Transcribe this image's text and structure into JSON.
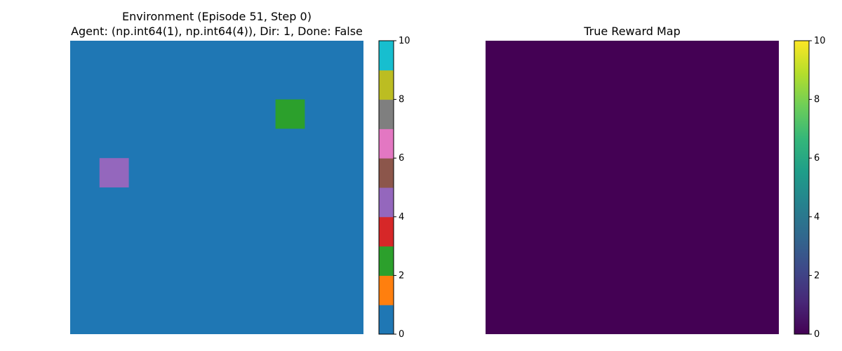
{
  "chart_data": [
    {
      "type": "heatmap",
      "title_line1": "Environment (Episode 51, Step 0)",
      "title_line2": "Agent: (np.int64(1), np.int64(4)), Dir: 1, Done: False",
      "grid_size": [
        10,
        10
      ],
      "background_value": 0,
      "cells": [
        {
          "row": 2,
          "col": 7,
          "value": 2
        },
        {
          "row": 4,
          "col": 1,
          "value": 4
        }
      ],
      "colormap": "tab10",
      "colorbar": {
        "range": [
          0,
          10
        ],
        "ticks": [
          "0",
          "2",
          "4",
          "6",
          "8",
          "10"
        ],
        "bands": [
          "#1f77b4",
          "#ff7f0e",
          "#2ca02c",
          "#d62728",
          "#9467bd",
          "#8c564b",
          "#e377c2",
          "#7f7f7f",
          "#bcbd22",
          "#17becf"
        ]
      },
      "axes": "off"
    },
    {
      "type": "heatmap",
      "title": "True Reward Map",
      "grid_size": [
        10,
        10
      ],
      "background_value": 0,
      "cells": [],
      "colormap": "viridis",
      "colorbar": {
        "range": [
          0,
          10
        ],
        "ticks": [
          "0",
          "2",
          "4",
          "6",
          "8",
          "10"
        ],
        "gradient": [
          "#440154",
          "#482878",
          "#3e4989",
          "#31688e",
          "#26828e",
          "#1f9e89",
          "#35b779",
          "#6ece58",
          "#b5de2b",
          "#fde725"
        ]
      },
      "axes": "off"
    }
  ]
}
